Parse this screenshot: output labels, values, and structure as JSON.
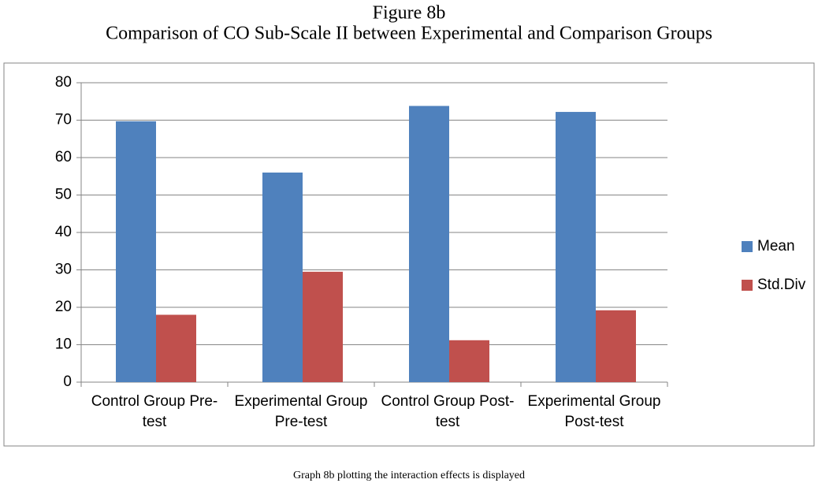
{
  "chart_data": {
    "type": "bar",
    "title": "Figure 8b",
    "subtitle": "Comparison of CO Sub-Scale II between Experimental and Comparison Groups",
    "caption": "Graph 8b plotting the interaction effects is displayed",
    "categories": [
      "Control Group Pre-test",
      "Experimental Group Pre-test",
      "Control Group Post-test",
      "Experimental Group Post-test"
    ],
    "series": [
      {
        "name": "Mean",
        "color": "#4f81bd",
        "values": [
          69.7,
          56,
          73.8,
          72.2
        ]
      },
      {
        "name": "Std.Div",
        "color": "#c0504d",
        "values": [
          18,
          29.5,
          11.2,
          19.2
        ]
      }
    ],
    "ylim": [
      0,
      80
    ],
    "yticks": [
      0,
      10,
      20,
      30,
      40,
      50,
      60,
      70,
      80
    ],
    "grid": true,
    "legend": "right"
  }
}
